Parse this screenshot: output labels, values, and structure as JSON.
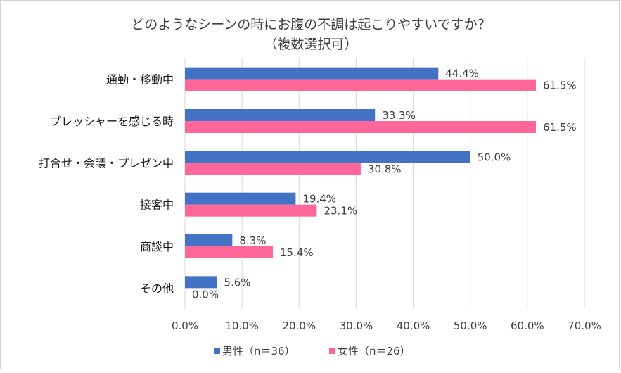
{
  "chart_data": {
    "type": "bar",
    "orientation": "horizontal",
    "title_line1": "どのようなシーンの時にお腹の不調は起こりやすいですか？",
    "title_line2": "（複数選択可）",
    "categories": [
      "通勤・移動中",
      "プレッシャーを感じる時",
      "打合せ・会議・プレゼン中",
      "接客中",
      "商談中",
      "その他"
    ],
    "series": [
      {
        "name": "男性（n＝36）",
        "color": "#4472C4",
        "values": [
          44.4,
          33.3,
          50.0,
          19.4,
          8.3,
          5.6
        ],
        "labels": [
          "44.4%",
          "33.3%",
          "50.0%",
          "19.4%",
          "8.3%",
          "5.6%"
        ]
      },
      {
        "name": "女性（n＝26）",
        "color": "#FF6699",
        "values": [
          61.5,
          61.5,
          30.8,
          23.1,
          15.4,
          0.0
        ],
        "labels": [
          "61.5%",
          "61.5%",
          "30.8%",
          "23.1%",
          "15.4%",
          "0.0%"
        ]
      }
    ],
    "xlim": [
      0,
      70
    ],
    "xticks": [
      0,
      10,
      20,
      30,
      40,
      50,
      60,
      70
    ],
    "xtick_labels": [
      "0.0%",
      "10.0%",
      "20.0%",
      "30.0%",
      "40.0%",
      "50.0%",
      "60.0%",
      "70.0%"
    ],
    "grid": true,
    "legend_position": "bottom",
    "grid_color": "#d9d9d9",
    "text_color": "#404040"
  }
}
